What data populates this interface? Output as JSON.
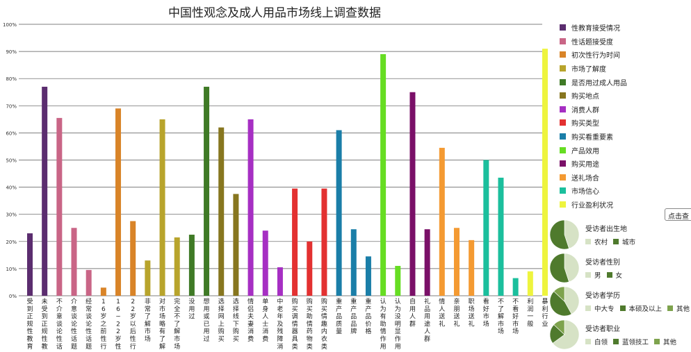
{
  "chart_data": {
    "type": "bar",
    "title": "中国性观念及成人用品市场线上调查数据",
    "ylim": [
      0,
      100
    ],
    "yticks": [
      "0%",
      "10%",
      "20%",
      "30%",
      "40%",
      "50%",
      "60%",
      "70%",
      "80%",
      "90%",
      "100%"
    ],
    "grid": true,
    "legend_position": "right",
    "groups": [
      {
        "name": "性教育接受情况",
        "color": "#5b2d6f",
        "bars": [
          {
            "label": "受到正规性教育",
            "value": 23
          },
          {
            "label": "未受到正规性教育",
            "value": 77
          }
        ]
      },
      {
        "name": "性话题接受度",
        "color": "#c96586",
        "bars": [
          {
            "label": "不介意谈论性话题",
            "value": 65.5
          },
          {
            "label": "介意谈论性话题",
            "value": 25
          },
          {
            "label": "经常谈论性话题",
            "value": 9.5
          }
        ]
      },
      {
        "name": "初次性行为时间",
        "color": "#d98428",
        "bars": [
          {
            "label": "16岁之前性行为",
            "value": 3
          },
          {
            "label": "16~22岁性行为",
            "value": 69
          },
          {
            "label": "22岁以后性行为",
            "value": 27.5
          }
        ]
      },
      {
        "name": "市场了解度",
        "color": "#b8a42c",
        "bars": [
          {
            "label": "非常了解市场",
            "value": 13
          },
          {
            "label": "对市场略有了解",
            "value": 65
          },
          {
            "label": "完全不了解市场",
            "value": 21.5
          }
        ]
      },
      {
        "name": "是否用过成人用品",
        "color": "#3f7a26",
        "bars": [
          {
            "label": "没用过",
            "value": 22.5
          },
          {
            "label": "想用或已用过",
            "value": 77
          }
        ]
      },
      {
        "name": "购买地点",
        "color": "#87761f",
        "bars": [
          {
            "label": "选择网上购买",
            "value": 62
          },
          {
            "label": "选择线下购买",
            "value": 37.5
          }
        ]
      },
      {
        "name": "消费人群",
        "color": "#a62fc3",
        "bars": [
          {
            "label": "情侣夫妻消费",
            "value": 65
          },
          {
            "label": "单身人士消费",
            "value": 24
          },
          {
            "label": "中老年及残障消费",
            "value": 10.5
          }
        ]
      },
      {
        "name": "购买类型",
        "color": "#e33131",
        "bars": [
          {
            "label": "购买调情器具类",
            "value": 39.5
          },
          {
            "label": "购买助情药物类",
            "value": 20
          },
          {
            "label": "购买情趣内衣类",
            "value": 39.5
          }
        ]
      },
      {
        "name": "购买看重要素",
        "color": "#1a7ea8",
        "bars": [
          {
            "label": "重产品质量",
            "value": 61
          },
          {
            "label": "重产品品牌",
            "value": 24.5
          },
          {
            "label": "重产品价格",
            "value": 14.5
          }
        ]
      },
      {
        "name": "产品效用",
        "color": "#66dd22",
        "bars": [
          {
            "label": "认为有助情作用",
            "value": 89
          },
          {
            "label": "认为没明显作用",
            "value": 11
          }
        ]
      },
      {
        "name": "购买用途",
        "color": "#7a1068",
        "bars": [
          {
            "label": "自用人群",
            "value": 75
          },
          {
            "label": "礼品用途人群",
            "value": 24.5
          }
        ]
      },
      {
        "name": "送礼场合",
        "color": "#f49a32",
        "bars": [
          {
            "label": "情人送礼",
            "value": 54.5
          },
          {
            "label": "亲朋送礼",
            "value": 25
          },
          {
            "label": "职场送礼",
            "value": 20.5
          }
        ]
      },
      {
        "name": "市场信心",
        "color": "#1bbf9d",
        "bars": [
          {
            "label": "看好市场",
            "value": 50
          },
          {
            "label": "不了解市场",
            "value": 43.5
          },
          {
            "label": "不看好市场",
            "value": 6.5
          }
        ]
      },
      {
        "name": "行业盈利状况",
        "color": "#eef43e",
        "bars": [
          {
            "label": "利润一般",
            "value": 9
          },
          {
            "label": "暴利行业",
            "value": 91
          }
        ]
      }
    ],
    "pies": [
      {
        "title": "受访者出生地",
        "slices": [
          {
            "name": "农村",
            "value": 45,
            "color": "#d6e2c5"
          },
          {
            "name": "城市",
            "value": 55,
            "color": "#4f7a2d"
          }
        ]
      },
      {
        "title": "受访者性别",
        "slices": [
          {
            "name": "男",
            "value": 45,
            "color": "#d6e2c5"
          },
          {
            "name": "女",
            "value": 55,
            "color": "#4f7a2d"
          }
        ]
      },
      {
        "title": "受访者学历",
        "slices": [
          {
            "name": "中大专",
            "value": 42,
            "color": "#d6e2c5"
          },
          {
            "name": "本硕及以上",
            "value": 45,
            "color": "#4f7a2d"
          },
          {
            "name": "其他",
            "value": 13,
            "color": "#7ea34d"
          }
        ]
      },
      {
        "title": "受访者职业",
        "slices": [
          {
            "name": "白领",
            "value": 65,
            "color": "#d6e2c5"
          },
          {
            "name": "蓝领技工",
            "value": 22,
            "color": "#4f7a2d"
          },
          {
            "name": "其他",
            "value": 13,
            "color": "#7ea34d"
          }
        ]
      }
    ]
  },
  "tooltip": {
    "text": "点击查"
  }
}
